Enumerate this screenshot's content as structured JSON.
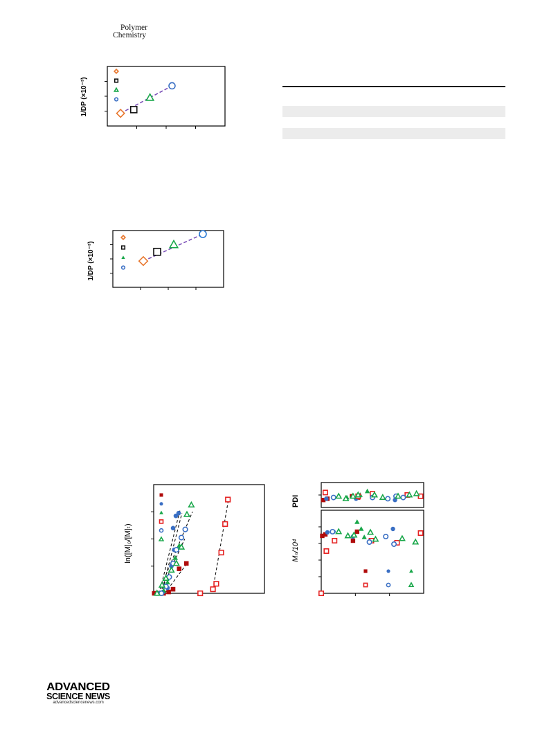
{
  "header": {
    "journal_line1": "Polymer",
    "journal_line2": "Chemistry"
  },
  "footer": {
    "logo_line1": "ADVANCED",
    "logo_line2": "SCIENCE NEWS",
    "logo_url": "advancedsciencenews.com"
  },
  "colors": {
    "orange": "#e8772e",
    "black": "#111111",
    "green": "#19a74a",
    "blue": "#3a6fc4",
    "purple": "#7b4fb8",
    "red": "#e52222",
    "dark_red": "#b00b0b",
    "teal": "#4f8f8f"
  },
  "chart_data": [
    {
      "type": "scatter",
      "title": "",
      "ylabel": "1/DP (×10⁻³)",
      "xlabel": "",
      "x_ticks": 5,
      "y_ticks": 5,
      "legend_placement": "top-left",
      "legend_markers": [
        "diamond-open-orange",
        "square-open-black",
        "triangle-open-green",
        "circle-open-blue"
      ],
      "points": [
        {
          "marker": "diamond",
          "color": "#e8772e",
          "x": 0.45,
          "y": 0.85
        },
        {
          "marker": "square",
          "color": "#111111",
          "x": 0.9,
          "y": 1.1
        },
        {
          "marker": "triangle",
          "color": "#19a74a",
          "x": 1.45,
          "y": 1.9
        },
        {
          "marker": "circle",
          "color": "#3a6fc4",
          "x": 2.2,
          "y": 2.7
        }
      ],
      "fit_line": {
        "color": "#7b4fb8",
        "from": [
          0.45,
          0.85
        ],
        "to": [
          2.2,
          2.7
        ]
      },
      "xlim": [
        0,
        4
      ],
      "ylim": [
        0,
        4
      ]
    },
    {
      "type": "scatter",
      "title": "",
      "ylabel": "1/DP (×10⁻³)",
      "xlabel": "",
      "x_ticks": 5,
      "y_ticks": 5,
      "legend_placement": "top-left",
      "legend_markers": [
        "diamond-open-orange",
        "square-open-black",
        "triangle-filled-green",
        "circle-open-blue"
      ],
      "points": [
        {
          "marker": "diamond",
          "color": "#e8772e",
          "x": 1.1,
          "y": 1.85
        },
        {
          "marker": "square",
          "color": "#111111",
          "x": 1.6,
          "y": 2.5
        },
        {
          "marker": "triangle",
          "color": "#19a74a",
          "x": 2.2,
          "y": 3.0
        },
        {
          "marker": "circle",
          "color": "#2b7bd6",
          "x": 3.25,
          "y": 3.75
        }
      ],
      "fit_line": {
        "color": "#7b4fb8",
        "from": [
          1.1,
          1.85
        ],
        "to": [
          3.25,
          3.75
        ]
      },
      "xlim": [
        0,
        4
      ],
      "ylim": [
        0,
        4
      ]
    },
    {
      "type": "scatter",
      "title": "",
      "ylabel": "ln([M]₀/[M]ₜ)",
      "xlabel": "",
      "legend_placement": "top-left",
      "legend_markers": [
        "square-filled-dark-red",
        "circle-filled-blue",
        "triangle-filled-green",
        "square-open-red",
        "circle-open-blue",
        "triangle-open-green"
      ],
      "xlim": [
        0,
        10
      ],
      "ylim": [
        0,
        4
      ],
      "series": [
        {
          "marker": "square-filled",
          "color": "#b00b0b",
          "points": [
            [
              0.05,
              0.0
            ],
            [
              0.4,
              0.0
            ],
            [
              0.9,
              0.0
            ],
            [
              1.35,
              0.05
            ],
            [
              1.75,
              0.15
            ],
            [
              2.3,
              0.9
            ],
            [
              2.95,
              1.1
            ]
          ],
          "fit": [
            [
              1.0,
              0.0
            ],
            [
              3.1,
              1.15
            ]
          ]
        },
        {
          "marker": "circle-filled",
          "color": "#3a6fc4",
          "points": [
            [
              0.5,
              0.0
            ],
            [
              0.85,
              0.05
            ],
            [
              1.25,
              0.2
            ],
            [
              1.6,
              1.0
            ],
            [
              1.85,
              1.6
            ],
            [
              1.75,
              2.4
            ],
            [
              2.0,
              2.85
            ],
            [
              2.25,
              2.95
            ]
          ],
          "fit": [
            [
              0.5,
              0.0
            ],
            [
              2.4,
              3.1
            ]
          ]
        },
        {
          "marker": "triangle-filled",
          "color": "#19a74a",
          "points": [
            [
              0.55,
              0.0
            ],
            [
              0.9,
              0.1
            ],
            [
              1.25,
              0.4
            ],
            [
              1.6,
              0.85
            ],
            [
              1.95,
              1.3
            ],
            [
              2.3,
              1.75
            ]
          ],
          "fit": [
            [
              0.55,
              0.0
            ],
            [
              2.8,
              2.0
            ]
          ]
        },
        {
          "marker": "square-open",
          "color": "#e52222",
          "points": [
            [
              4.2,
              0.0
            ],
            [
              5.35,
              0.15
            ],
            [
              5.65,
              0.35
            ],
            [
              6.1,
              1.5
            ],
            [
              6.45,
              2.55
            ],
            [
              6.7,
              3.45
            ]
          ],
          "fit": [
            [
              5.35,
              0.15
            ],
            [
              6.75,
              3.45
            ]
          ]
        },
        {
          "marker": "circle-open",
          "color": "#3a6fc4",
          "points": [
            [
              0.7,
              0.0
            ],
            [
              1.1,
              0.25
            ],
            [
              1.4,
              0.6
            ],
            [
              1.75,
              1.1
            ],
            [
              2.05,
              1.6
            ],
            [
              2.5,
              2.05
            ],
            [
              2.85,
              2.35
            ]
          ],
          "fit": [
            [
              0.7,
              0.0
            ],
            [
              2.55,
              2.95
            ]
          ]
        },
        {
          "marker": "triangle-open",
          "color": "#19a74a",
          "points": [
            [
              0.3,
              0.0
            ],
            [
              0.75,
              0.3
            ],
            [
              1.1,
              0.55
            ],
            [
              1.6,
              0.85
            ],
            [
              2.05,
              1.1
            ],
            [
              2.5,
              1.7
            ],
            [
              3.0,
              2.9
            ],
            [
              3.4,
              3.25
            ]
          ],
          "fit": [
            [
              0.4,
              0.0
            ],
            [
              3.5,
              3.0
            ]
          ]
        }
      ]
    },
    {
      "type": "scatter",
      "title": "",
      "ylabel": "PDI",
      "xlabel": "",
      "xlim": [
        0,
        100
      ],
      "ylim": [
        1.0,
        2.0
      ],
      "series": [
        {
          "marker": "square-filled",
          "color": "#b00b0b",
          "points": [
            [
              2,
              1.3
            ],
            [
              6,
              1.35
            ],
            [
              30,
              1.45
            ],
            [
              36,
              1.4
            ]
          ]
        },
        {
          "marker": "circle-filled",
          "color": "#3a6fc4",
          "points": [
            [
              5,
              1.35
            ],
            [
              12,
              1.4
            ],
            [
              34,
              1.35
            ],
            [
              72,
              1.3
            ]
          ]
        },
        {
          "marker": "triangle-filled",
          "color": "#19a74a",
          "points": [
            [
              25,
              1.4
            ],
            [
              38,
              1.5
            ],
            [
              45,
              1.65
            ]
          ]
        },
        {
          "marker": "square-open",
          "color": "#e52222",
          "points": [
            [
              4,
              1.6
            ],
            [
              36,
              1.45
            ],
            [
              50,
              1.55
            ],
            [
              84,
              1.5
            ],
            [
              97,
              1.45
            ]
          ]
        },
        {
          "marker": "circle-open",
          "color": "#3a6fc4",
          "points": [
            [
              12,
              1.4
            ],
            [
              50,
              1.4
            ],
            [
              65,
              1.35
            ],
            [
              73,
              1.45
            ],
            [
              80,
              1.4
            ]
          ]
        },
        {
          "marker": "triangle-open",
          "color": "#19a74a",
          "points": [
            [
              17,
              1.45
            ],
            [
              24,
              1.35
            ],
            [
              31,
              1.45
            ],
            [
              36,
              1.5
            ],
            [
              52,
              1.5
            ],
            [
              60,
              1.4
            ],
            [
              75,
              1.45
            ],
            [
              86,
              1.5
            ],
            [
              93,
              1.55
            ]
          ]
        }
      ]
    },
    {
      "type": "scatter",
      "title": "",
      "ylabel": "Mₙ/10⁴",
      "xlabel": "",
      "xlim": [
        0,
        100
      ],
      "ylim": [
        0,
        12
      ],
      "legend_placement": "bottom-right",
      "series": [
        {
          "marker": "square-filled",
          "color": "#b00b0b",
          "points": [
            [
              1,
              8.3
            ],
            [
              4,
              8.5
            ],
            [
              31,
              7.6
            ],
            [
              35,
              8.9
            ]
          ]
        },
        {
          "marker": "circle-filled",
          "color": "#3a6fc4",
          "points": [
            [
              6,
              8.8
            ],
            [
              12,
              8.9
            ],
            [
              31,
              8.2
            ],
            [
              70,
              9.3
            ]
          ]
        },
        {
          "marker": "triangle-filled",
          "color": "#19a74a",
          "points": [
            [
              35,
              10.3
            ],
            [
              39,
              9.3
            ],
            [
              42,
              8.1
            ]
          ]
        },
        {
          "marker": "square-open",
          "color": "#e52222",
          "points": [
            [
              0,
              0.0
            ],
            [
              5,
              6.1
            ],
            [
              13,
              7.6
            ],
            [
              49,
              7.6
            ],
            [
              74,
              7.3
            ],
            [
              97,
              8.7
            ]
          ]
        },
        {
          "marker": "circle-open",
          "color": "#3a6fc4",
          "points": [
            [
              11,
              8.9
            ],
            [
              47,
              7.4
            ],
            [
              63,
              8.2
            ],
            [
              71,
              7.1
            ]
          ]
        },
        {
          "marker": "triangle-open",
          "color": "#19a74a",
          "points": [
            [
              17,
              8.9
            ],
            [
              26,
              8.3
            ],
            [
              32,
              8.4
            ],
            [
              48,
              8.8
            ],
            [
              53,
              7.8
            ],
            [
              79,
              7.9
            ],
            [
              92,
              7.4
            ]
          ]
        }
      ],
      "legend_markers": [
        "square-filled-dark-red",
        "circle-filled-blue",
        "triangle-filled-green",
        "square-open-red",
        "circle-open-blue",
        "triangle-open-green"
      ]
    }
  ]
}
